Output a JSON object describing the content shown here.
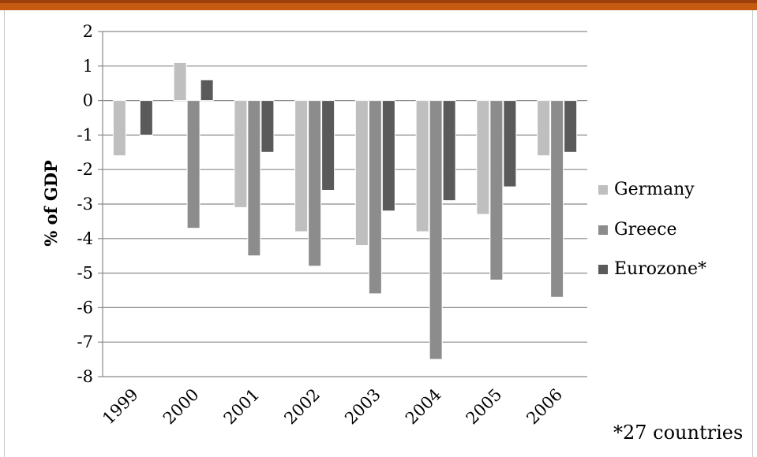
{
  "chart_data": {
    "type": "bar",
    "categories": [
      "1999",
      "2000",
      "2001",
      "2002",
      "2003",
      "2004",
      "2005",
      "2006"
    ],
    "series": [
      {
        "name": "Germany",
        "color": "#bfbfbf",
        "values": [
          -1.6,
          1.1,
          -3.1,
          -3.8,
          -4.2,
          -3.8,
          -3.3,
          -1.6
        ]
      },
      {
        "name": "Greece",
        "color": "#8c8c8c",
        "values": [
          null,
          -3.7,
          -4.5,
          -4.8,
          -5.6,
          -7.5,
          -5.2,
          -5.7
        ]
      },
      {
        "name": "Eurozone*",
        "color": "#5a5a5a",
        "values": [
          -1.0,
          0.6,
          -1.5,
          -2.6,
          -3.2,
          -2.9,
          -2.5,
          -1.5
        ]
      }
    ],
    "title": "",
    "xlabel": "",
    "ylabel": "% of GDP",
    "ylim": [
      -8,
      2
    ],
    "yticks": [
      2,
      1,
      0,
      -1,
      -2,
      -3,
      -4,
      -5,
      -6,
      -7,
      -8
    ],
    "grid": true,
    "legend": "right",
    "note": "*27 countries"
  }
}
